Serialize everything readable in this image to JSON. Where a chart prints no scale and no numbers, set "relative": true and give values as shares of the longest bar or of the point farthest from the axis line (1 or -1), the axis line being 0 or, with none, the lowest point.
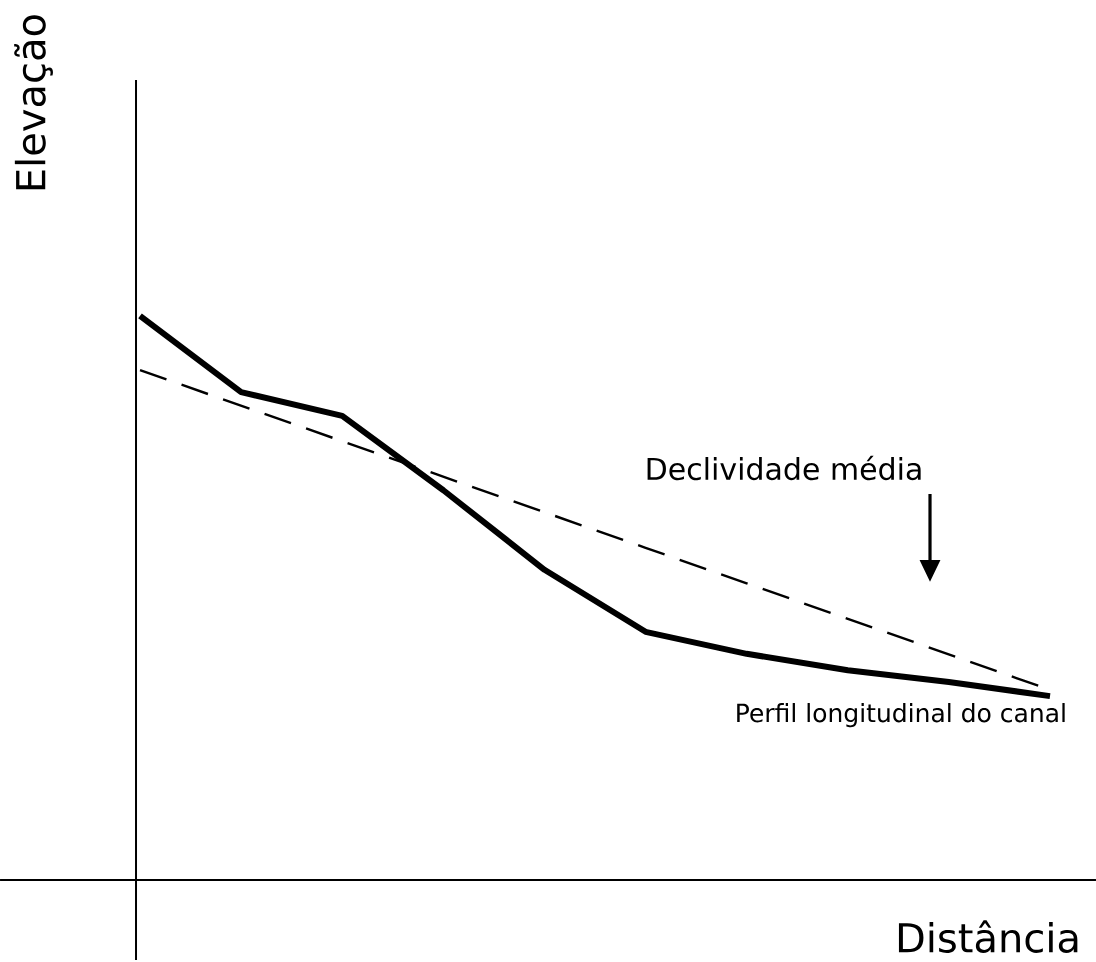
{
  "chart_data": {
    "type": "line",
    "xlabel": "Distância",
    "ylabel": "Elevação",
    "relative": true,
    "categories": [
      null,
      null,
      null,
      null,
      null,
      null,
      null,
      null,
      null,
      null
    ],
    "series": [
      {
        "name": "Perfil longitudinal do canal",
        "color": "#000000",
        "line_style": "solid",
        "values": [
          1,
          0.865,
          0.823,
          0.691,
          0.55,
          0.44,
          0.401,
          0.372,
          0.351,
          0.326
        ]
      },
      {
        "name": "Declividade média",
        "color": "#000000",
        "line_style": "dashed",
        "values": [
          0.904,
          0.841,
          0.778,
          0.715,
          0.652,
          0.589,
          0.526,
          0.463,
          0.4,
          0.337
        ]
      }
    ],
    "marker": "none"
  }
}
